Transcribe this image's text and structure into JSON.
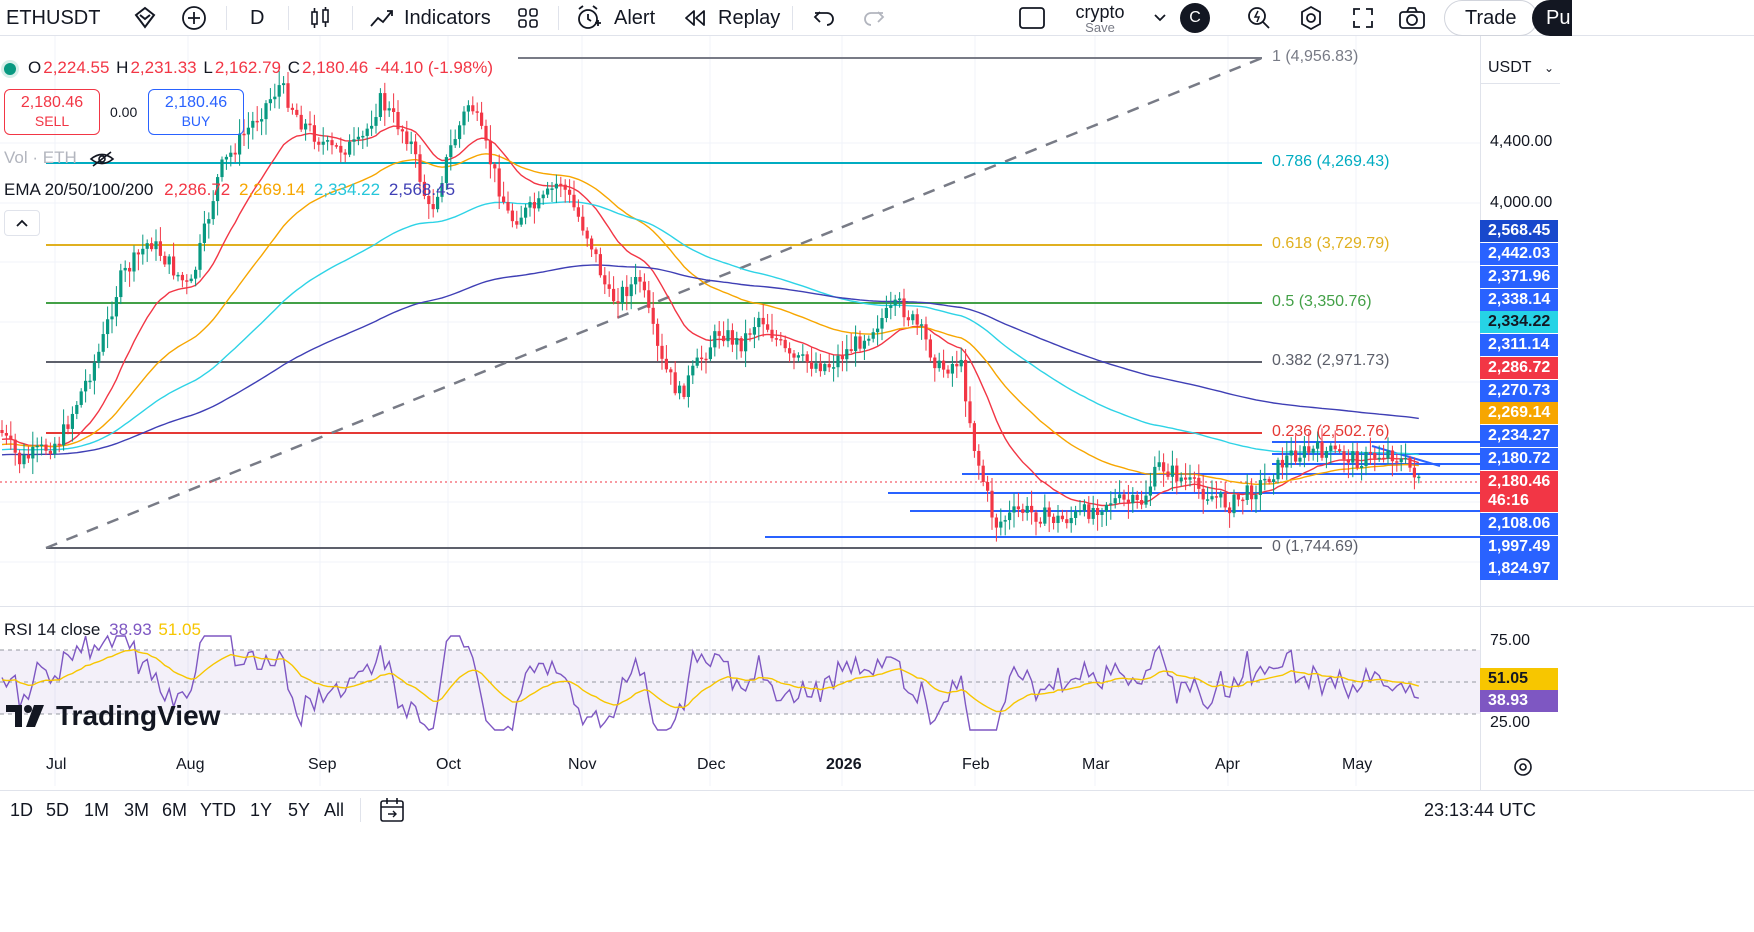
{
  "toolbar": {
    "symbol": "ETHUSDT",
    "interval": "D",
    "indicators_label": "Indicators",
    "alert_label": "Alert",
    "replay_label": "Replay",
    "layout_name": "crypto",
    "layout_sub": "Save",
    "avatar_letter": "C",
    "trade_label": "Trade",
    "publish_label": "Pu"
  },
  "legend": {
    "open_label": "O",
    "open": "2,224.55",
    "high_label": "H",
    "high": "2,231.33",
    "low_label": "L",
    "low": "2,162.79",
    "close_label": "C",
    "close": "2,180.46",
    "change": "-44.10 (-1.98%)",
    "sell_price": "2,180.46",
    "sell_label": "SELL",
    "spread": "0.00",
    "buy_price": "2,180.46",
    "buy_label": "BUY",
    "vol_label": "Vol · ETH",
    "ema_label": "EMA 20/50/100/200",
    "ema20": "2,286.72",
    "ema50": "2,269.14",
    "ema100": "2,334.22",
    "ema200": "2,568.45",
    "rsi_label": "RSI 14 close",
    "rsi_value": "38.93",
    "rsi_ma": "51.05"
  },
  "currency": "USDT",
  "colors": {
    "up": "#089981",
    "down": "#f23645",
    "ema20": "#f23645",
    "ema50": "#f7a600",
    "ema100": "#2ed3e6",
    "ema200": "#3f3fb5",
    "rsi": "#7e57c2",
    "rsi_ma": "#f7c600"
  },
  "price_axis": [
    "4,400.00",
    "4,000.00"
  ],
  "rsi_axis": [
    "75.00",
    "25.00"
  ],
  "price_tags": [
    {
      "text": "2,568.45",
      "color": "#1848cc"
    },
    {
      "text": "2,442.03",
      "color": "#2962ff"
    },
    {
      "text": "2,371.96",
      "color": "#2962ff"
    },
    {
      "text": "2,338.14",
      "color": "#2962ff"
    },
    {
      "text": "2,334.22",
      "color": "#26d3e6"
    },
    {
      "text": "2,311.14",
      "color": "#2962ff"
    },
    {
      "text": "2,286.72",
      "color": "#f23645"
    },
    {
      "text": "2,270.73",
      "color": "#2962ff"
    },
    {
      "text": "2,269.14",
      "color": "#f7a600"
    },
    {
      "text": "2,234.27",
      "color": "#2962ff"
    },
    {
      "text": "2,180.72",
      "color": "#2962ff"
    },
    {
      "text": "2,180.46",
      "color": "#f23645"
    },
    {
      "text": "46:16",
      "color": "#f23645"
    },
    {
      "text": "2,108.06",
      "color": "#2962ff"
    },
    {
      "text": "1,997.49",
      "color": "#2962ff"
    },
    {
      "text": "1,824.97",
      "color": "#2962ff"
    }
  ],
  "rsi_tags": [
    {
      "text": "51.05",
      "color": "#f7c600"
    },
    {
      "text": "38.93",
      "color": "#7e57c2"
    }
  ],
  "fib_levels": [
    {
      "label": "1 (4,956.83)",
      "color": "#787b86"
    },
    {
      "label": "0.786 (4,269.43)",
      "color": "#00acc1"
    },
    {
      "label": "0.618 (3,729.79)",
      "color": "#e0b020"
    },
    {
      "label": "0.5 (3,350.76)",
      "color": "#43a047"
    },
    {
      "label": "0.382 (2,971.73)",
      "color": "#5d606b"
    },
    {
      "label": "0.236 (2,502.76)",
      "color": "#e53935"
    },
    {
      "label": "0 (1,744.69)",
      "color": "#5d606b"
    }
  ],
  "x_axis": [
    "Jul",
    "Aug",
    "Sep",
    "Oct",
    "Nov",
    "Dec",
    "2026",
    "Feb",
    "Mar",
    "Apr",
    "May"
  ],
  "ranges": [
    "1D",
    "5D",
    "1M",
    "3M",
    "6M",
    "YTD",
    "1Y",
    "5Y",
    "All"
  ],
  "clock": "23:13:44 UTC",
  "watermark": "TradingView"
}
